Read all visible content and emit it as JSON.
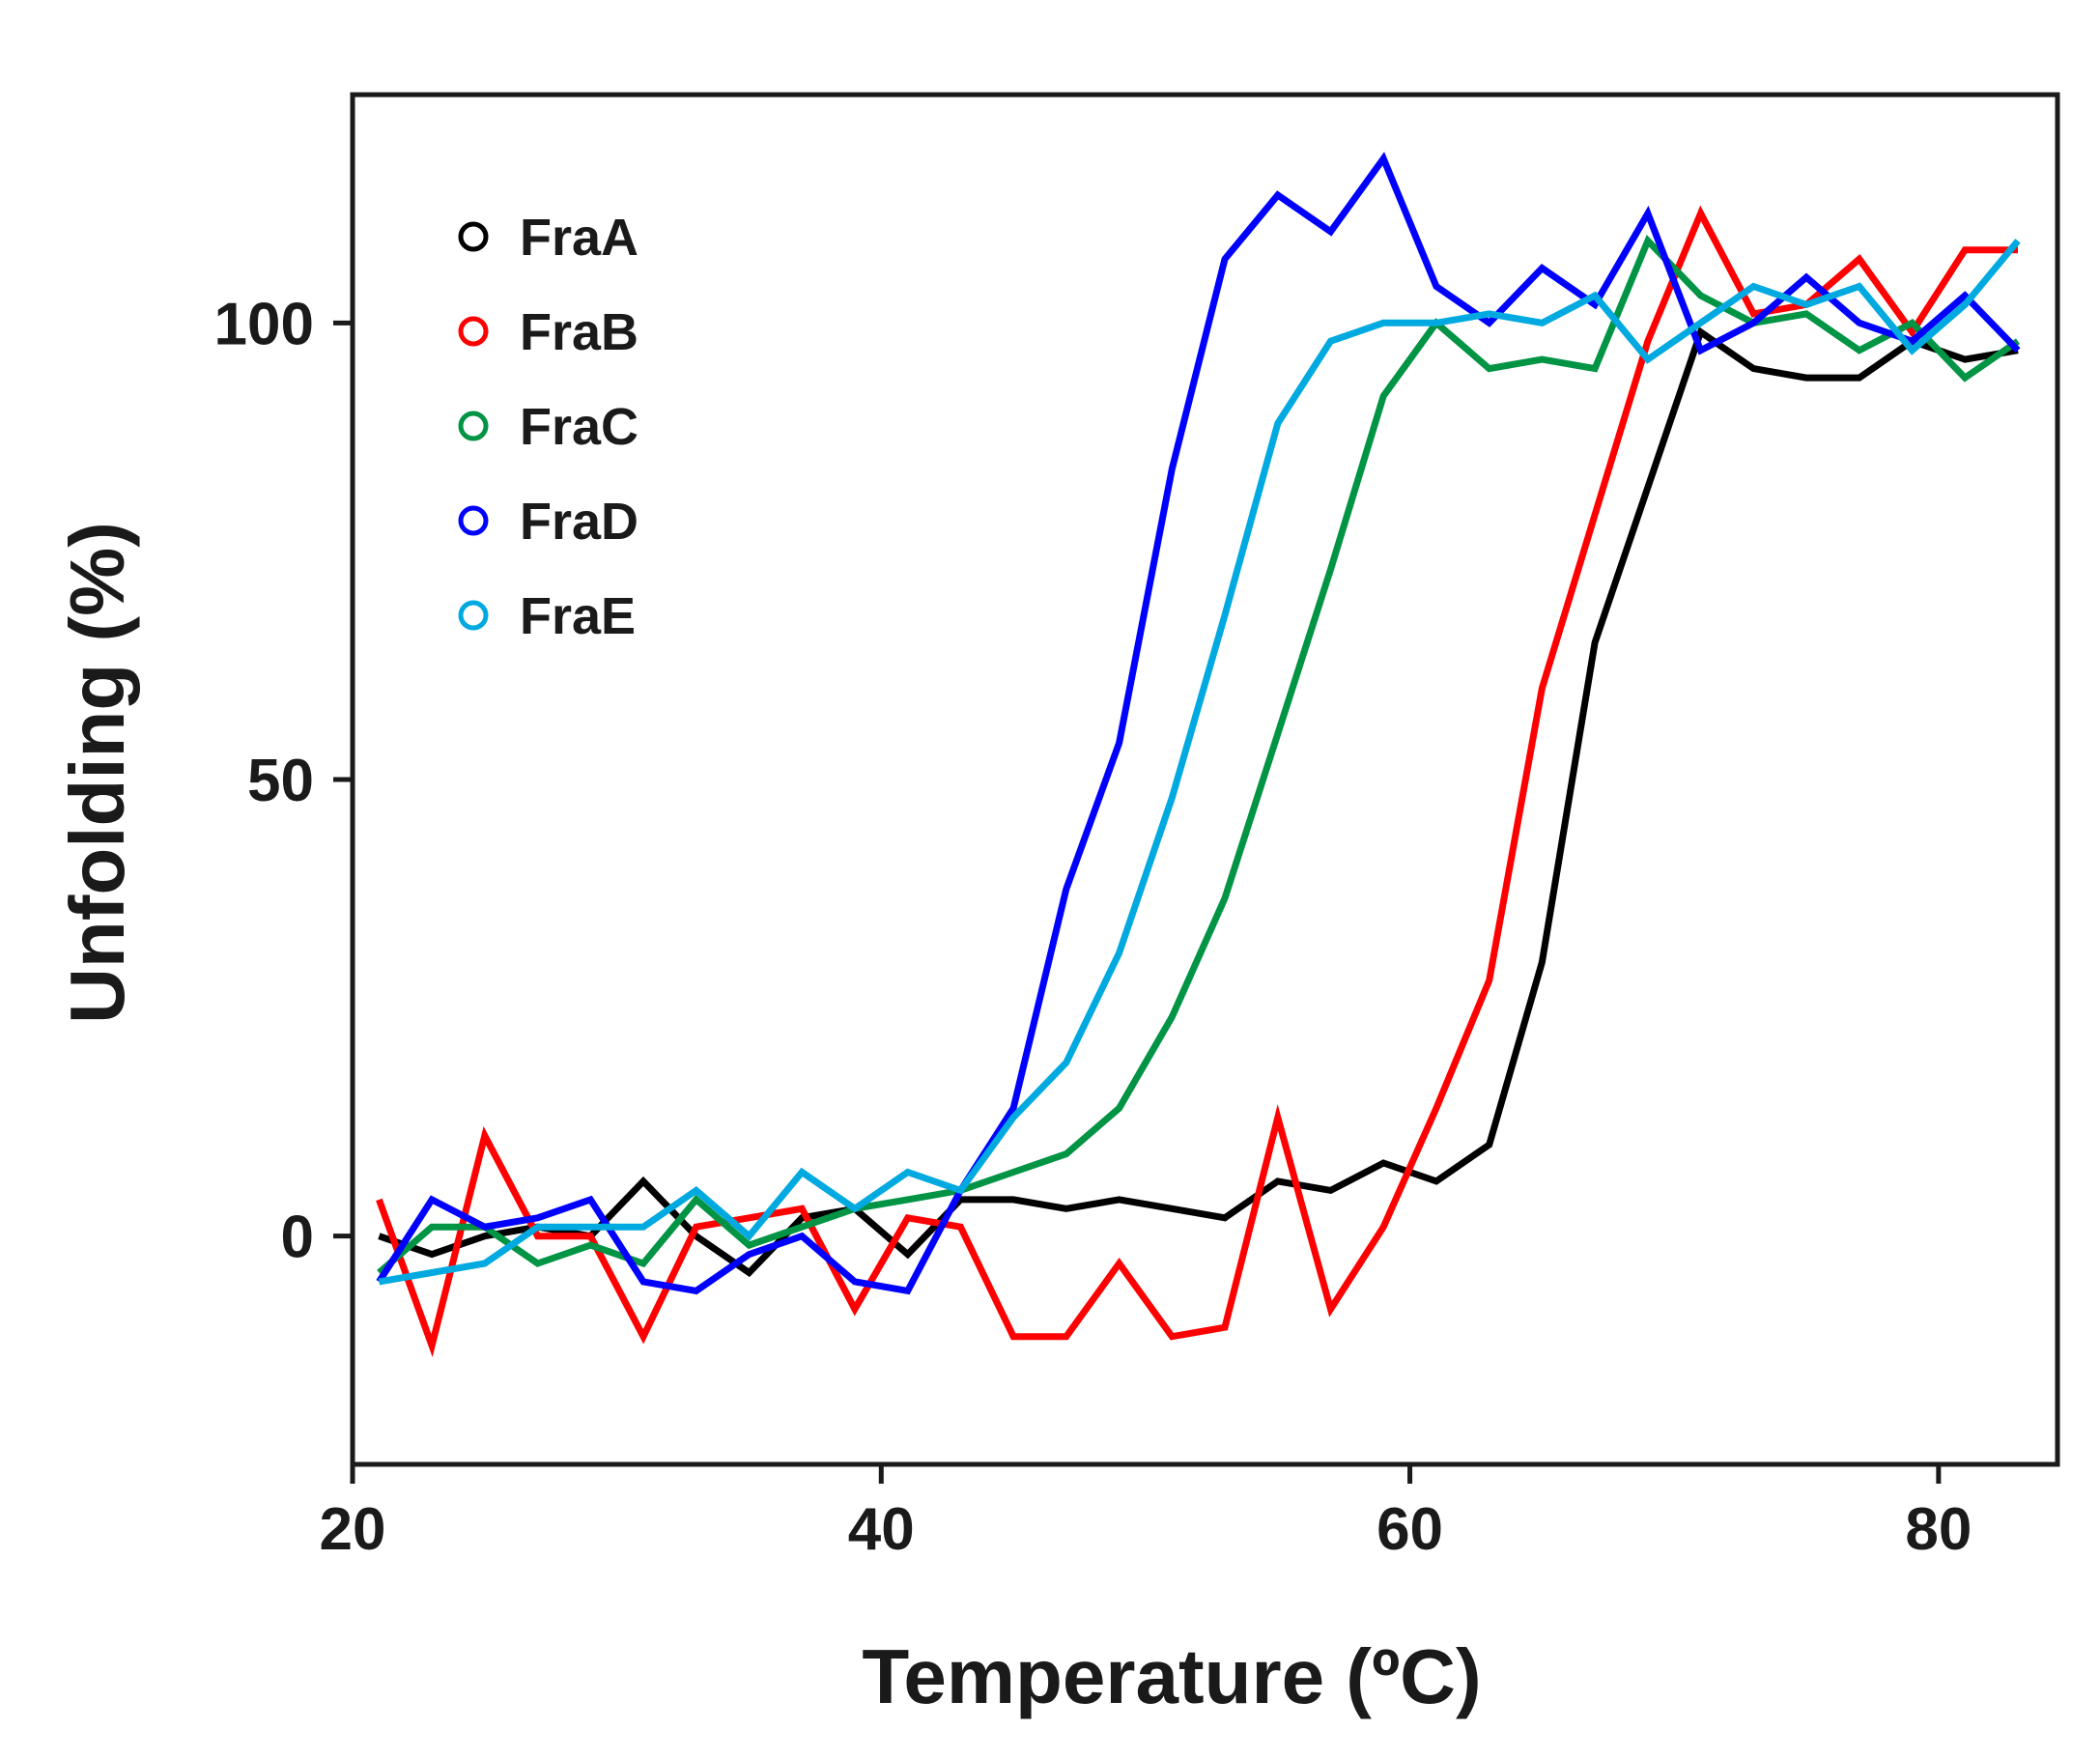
{
  "chart_data": {
    "type": "line",
    "title": "",
    "xlabel": "Temperature (ºC)",
    "ylabel": "Unfolding (%)",
    "xlim": [
      20,
      84.5
    ],
    "ylim": [
      -25,
      125
    ],
    "xticks": [
      20,
      40,
      60,
      80
    ],
    "yticks": [
      0,
      50,
      100
    ],
    "grid": false,
    "legend_position": "top-left",
    "x": [
      21,
      23,
      25,
      27,
      29,
      31,
      33,
      35,
      37,
      39,
      41,
      43,
      45,
      47,
      49,
      51,
      53,
      55,
      57,
      59,
      61,
      63,
      65,
      67,
      69,
      71,
      73,
      75,
      77,
      79,
      81,
      83
    ],
    "series": [
      {
        "name": "FraA",
        "color": "#000000",
        "values": [
          0,
          -2,
          0,
          1,
          0,
          6,
          0,
          -4,
          2,
          3,
          -2,
          4,
          4,
          3,
          4,
          3,
          2,
          6,
          5,
          8,
          6,
          10,
          30,
          65,
          82,
          99,
          95,
          94,
          94,
          98,
          96,
          97
        ]
      },
      {
        "name": "FraB",
        "color": "#ff0000",
        "values": [
          4,
          -12,
          11,
          0,
          0,
          -11,
          1,
          2,
          3,
          -8,
          2,
          1,
          -11,
          -11,
          -3,
          -11,
          -10,
          13,
          -8,
          1,
          14,
          28,
          60,
          79,
          98,
          112,
          101,
          102,
          107,
          99,
          108,
          108
        ]
      },
      {
        "name": "FraC",
        "color": "#009444",
        "values": [
          -4,
          1,
          1,
          -3,
          -1,
          -3,
          4,
          -1,
          1,
          3,
          4,
          5,
          7,
          9,
          14,
          24,
          37,
          55,
          73,
          92,
          100,
          95,
          96,
          95,
          109,
          103,
          100,
          101,
          97,
          100,
          94,
          98
        ]
      },
      {
        "name": "FraD",
        "color": "#0000ff",
        "values": [
          -5,
          4,
          1,
          2,
          4,
          -5,
          -6,
          -2,
          0,
          -5,
          -6,
          5,
          14,
          38,
          54,
          84,
          107,
          114,
          110,
          118,
          104,
          100,
          106,
          102,
          112,
          97,
          100,
          105,
          100,
          98,
          103,
          97
        ]
      },
      {
        "name": "FraE",
        "color": "#00a9e0",
        "values": [
          -5,
          -4,
          -3,
          1,
          1,
          1,
          5,
          0,
          7,
          3,
          7,
          5,
          13,
          19,
          31,
          48,
          68,
          89,
          98,
          100,
          100,
          101,
          100,
          103,
          96,
          100,
          104,
          102,
          104,
          97,
          102,
          109
        ]
      }
    ]
  }
}
